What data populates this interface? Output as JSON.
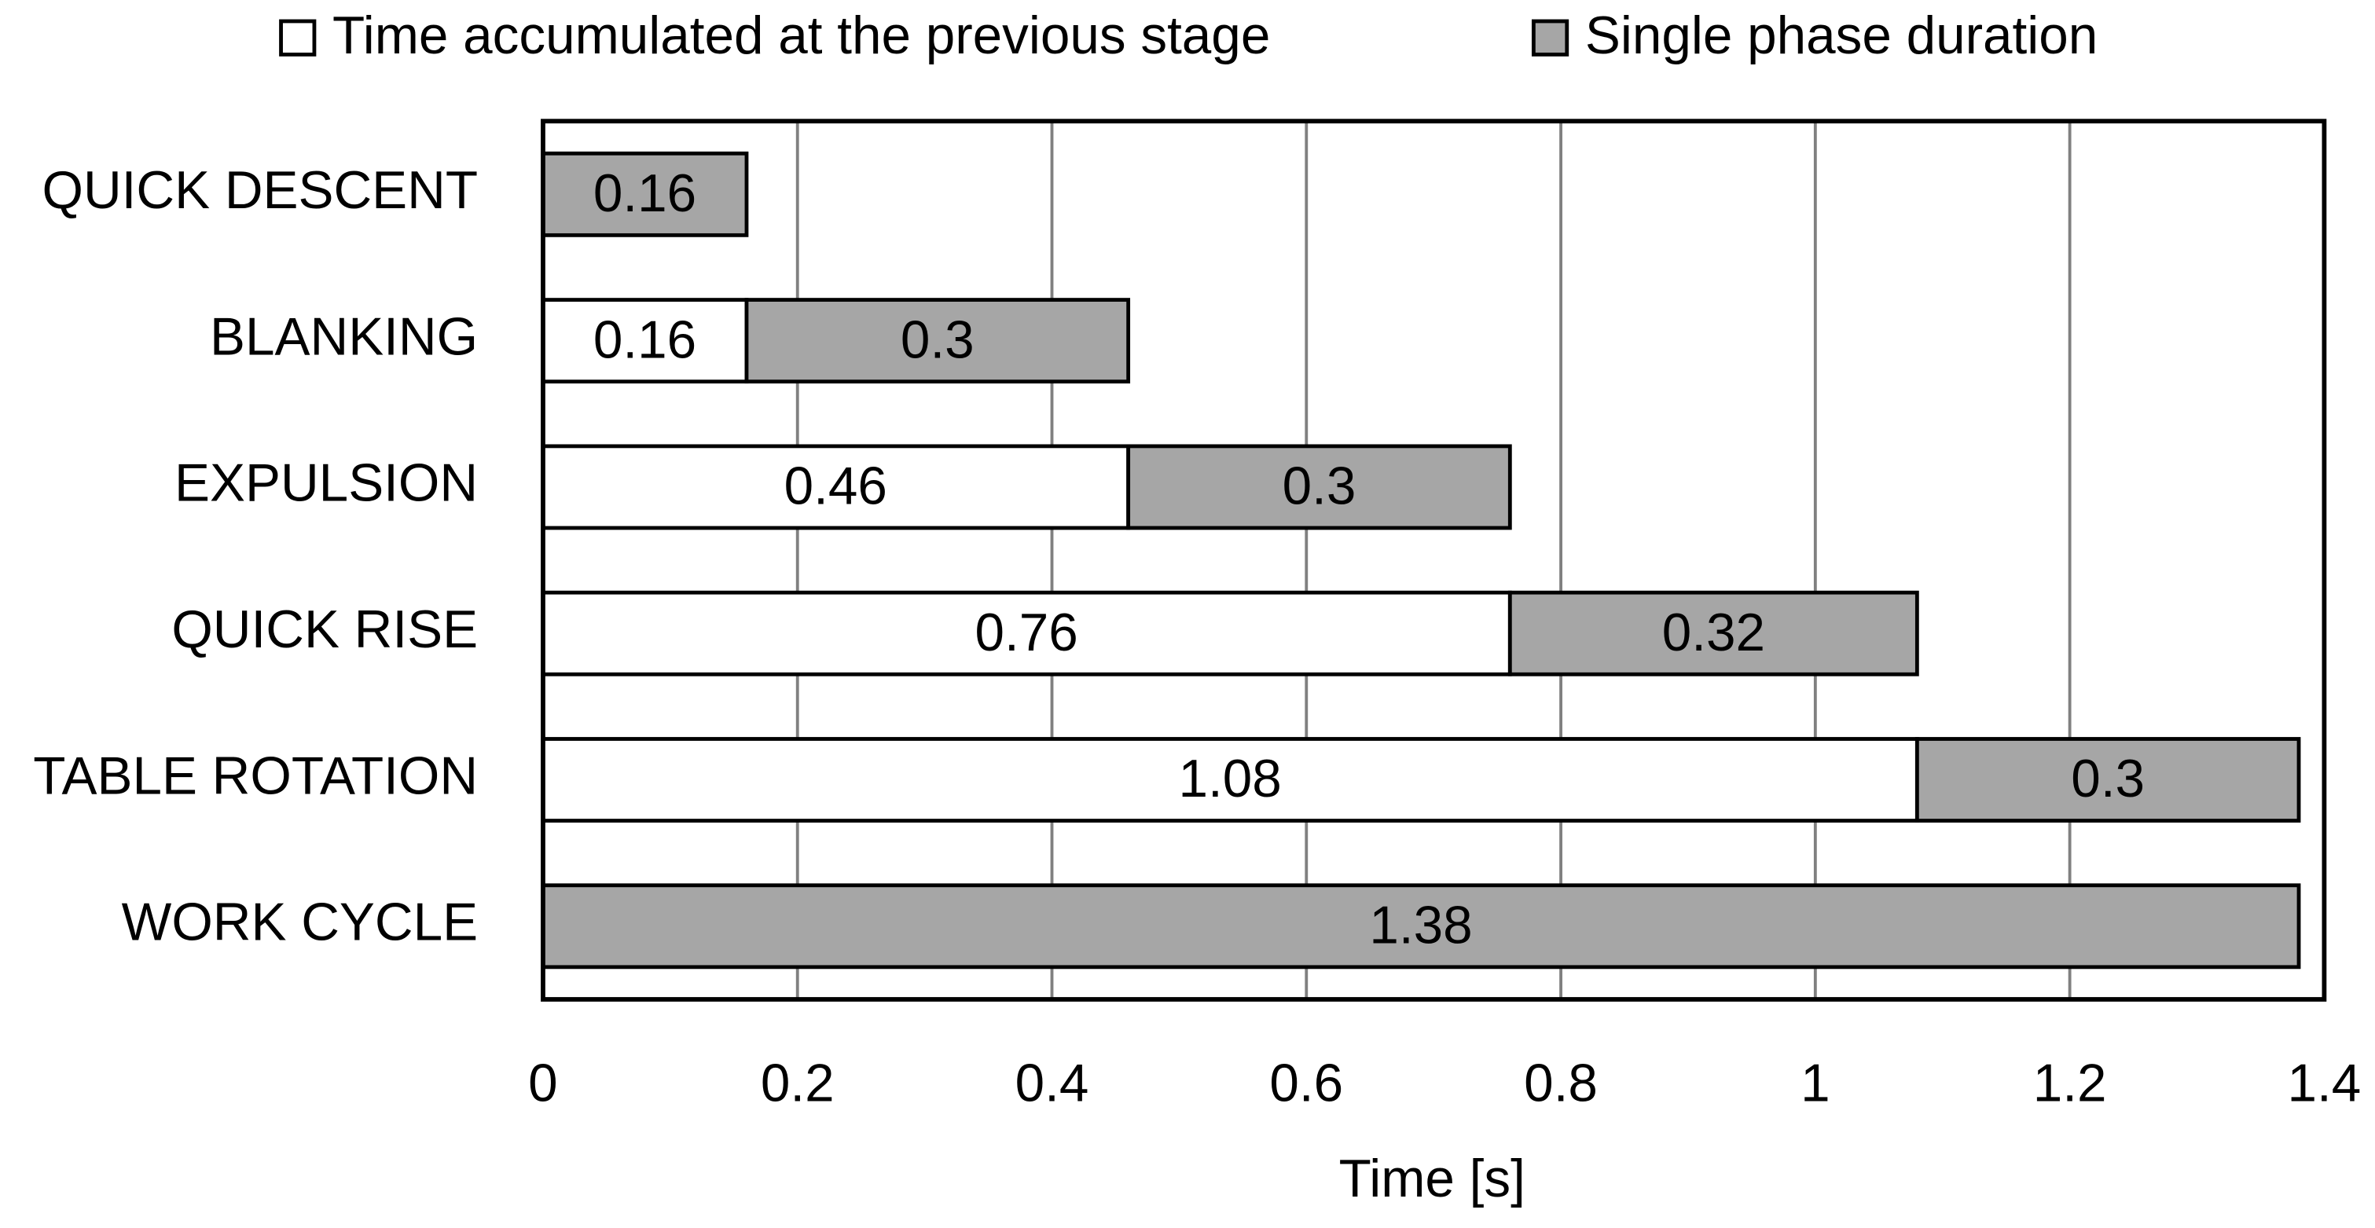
{
  "chart_data": {
    "type": "stacked-barh",
    "categories": [
      "QUICK DESCENT",
      "BLANKING",
      "EXPULSION",
      "QUICK RISE",
      "TABLE ROTATION",
      "WORK CYCLE"
    ],
    "series": [
      {
        "name": "Time accumulated at the previous stage",
        "color": "#ffffff",
        "values": [
          null,
          0.16,
          0.46,
          0.76,
          1.08,
          null
        ]
      },
      {
        "name": "Single phase duration",
        "color": "#a6a6a6",
        "values": [
          0.16,
          0.3,
          0.3,
          0.32,
          0.3,
          1.38
        ]
      }
    ],
    "xlabel": "Time [s]",
    "xlim": [
      0,
      1.4
    ],
    "xticks": [
      0,
      0.2,
      0.4,
      0.6,
      0.8,
      1,
      1.2,
      1.4
    ],
    "grid": true,
    "legend": "top"
  }
}
